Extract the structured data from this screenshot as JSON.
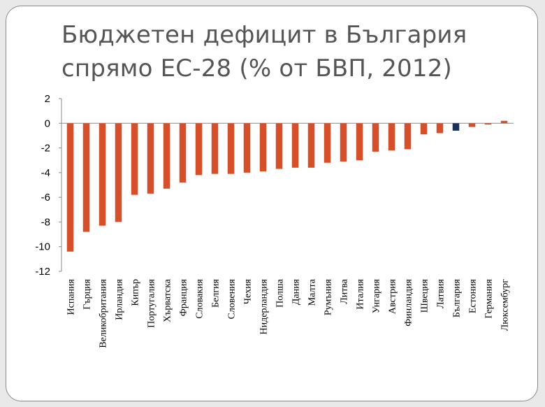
{
  "title": "Бюджетен дефицит в България спрямо ЕС-28 (% от БВП, 2012)",
  "chart_data": {
    "type": "bar",
    "title": "Бюджетен дефицит в България спрямо ЕС-28 (% от БВП, 2012)",
    "xlabel": "",
    "ylabel": "",
    "ylim": [
      -12,
      2
    ],
    "yticks": [
      2,
      0,
      -2,
      -4,
      -6,
      -8,
      -10,
      -12
    ],
    "grid": false,
    "legend": "none",
    "colors": {
      "default": "#d5502a",
      "highlight": "#1a2f5a"
    },
    "highlight_category": "България",
    "categories": [
      "Испания",
      "Гърция",
      "Великобритания",
      "Ирландия",
      "Кипър",
      "Португалия",
      "Хърватска",
      "Франция",
      "Словакия",
      "Белгия",
      "Словения",
      "Чехия",
      "Нидерландия",
      "Полша",
      "Дания",
      "Малта",
      "Румъния",
      "Литва",
      "Италия",
      "Унгария",
      "Австрия",
      "Финландия",
      "Швеция",
      "Латвия",
      "България",
      "Естония",
      "Германия",
      "Люксембург"
    ],
    "values": [
      -10.4,
      -8.8,
      -8.3,
      -8.0,
      -5.8,
      -5.7,
      -5.3,
      -4.8,
      -4.2,
      -4.1,
      -4.1,
      -4.0,
      -3.9,
      -3.7,
      -3.6,
      -3.6,
      -3.2,
      -3.1,
      -3.0,
      -2.3,
      -2.2,
      -2.1,
      -0.9,
      -0.8,
      -0.6,
      -0.3,
      -0.1,
      0.2
    ]
  }
}
